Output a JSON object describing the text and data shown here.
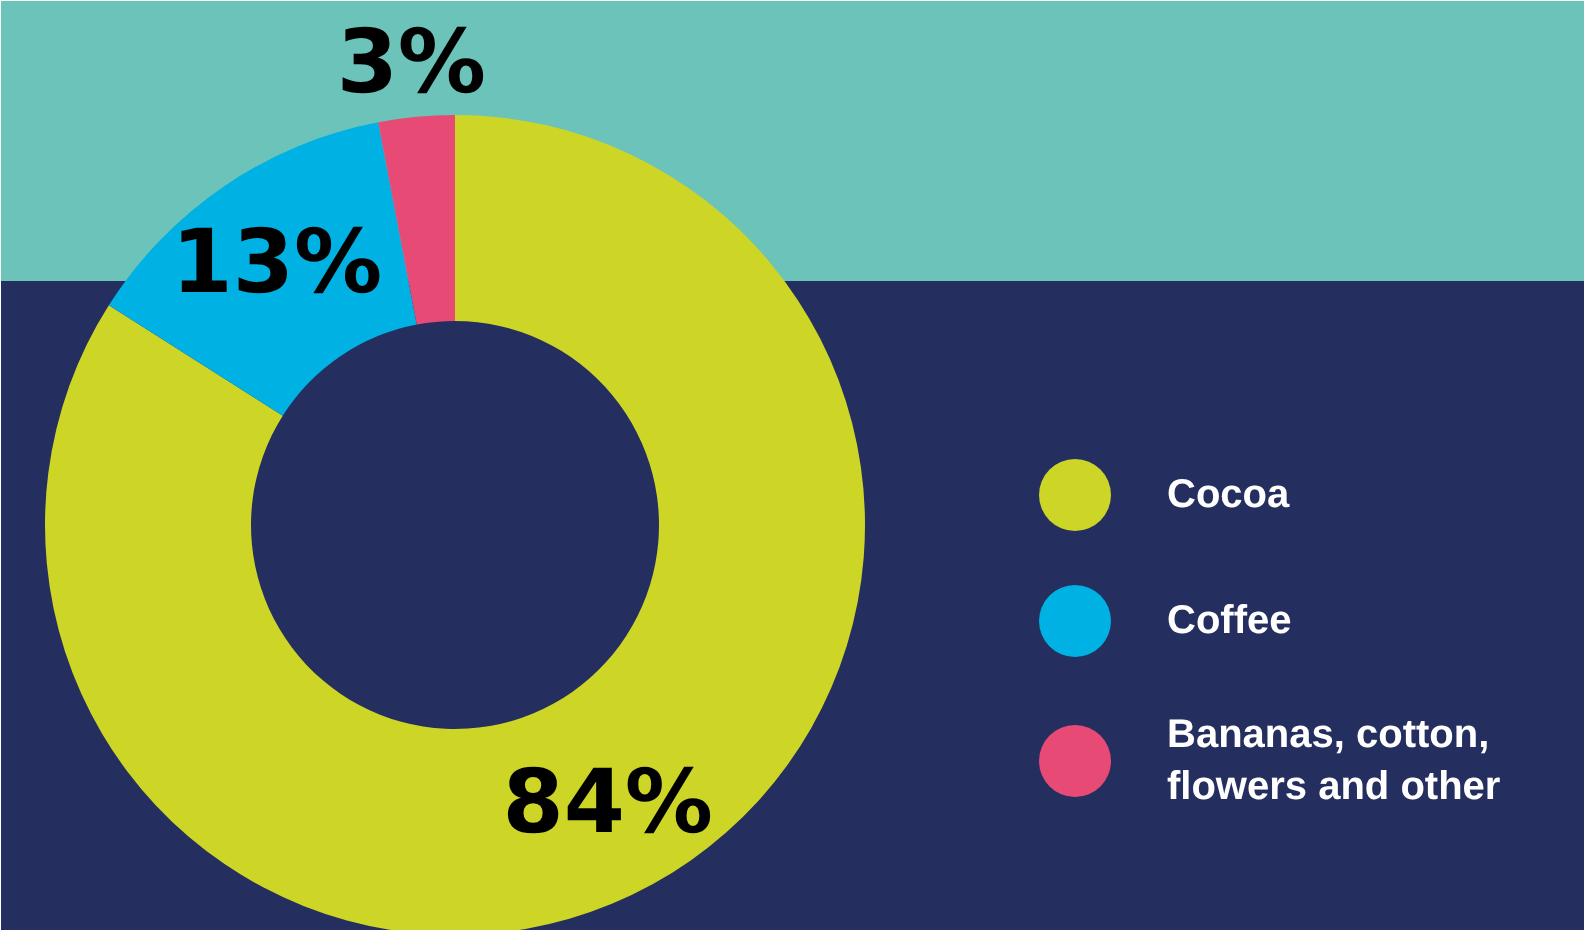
{
  "chart_data": {
    "type": "donut",
    "categories": [
      "Cocoa",
      "Coffee",
      "Bananas, cotton, flowers and other"
    ],
    "values": [
      84,
      13,
      3
    ],
    "colors": [
      "#cdd626",
      "#00b1e3",
      "#e84a76"
    ],
    "value_labels": [
      "84%",
      "13%",
      "3%"
    ],
    "legend": "right"
  }
}
